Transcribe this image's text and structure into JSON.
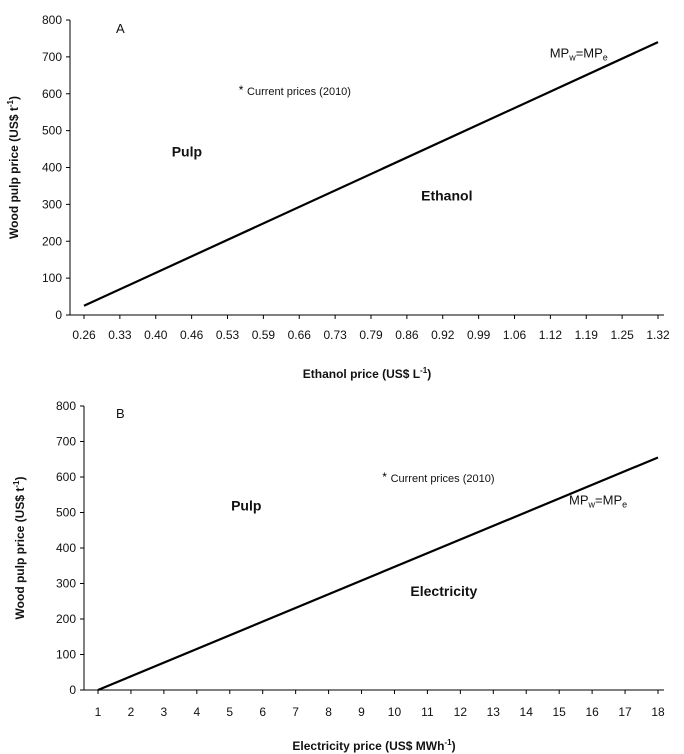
{
  "chart_data": [
    {
      "type": "line",
      "panel_label": "A",
      "xlabel_base": "Ethanol price (US$ L",
      "xlabel_sup": "-1",
      "xlabel_end": ")",
      "ylabel_base": "Wood pulp price (US$ t",
      "ylabel_sup": "-1",
      "ylabel_end": ")",
      "x_ticks": [
        "0.26",
        "0.33",
        "0.40",
        "0.46",
        "0.53",
        "0.59",
        "0.66",
        "0.73",
        "0.79",
        "0.86",
        "0.92",
        "0.99",
        "1.06",
        "1.12",
        "1.19",
        "1.25",
        "1.32"
      ],
      "y_ticks": [
        0,
        100,
        200,
        300,
        400,
        500,
        600,
        700,
        800
      ],
      "ylim": [
        0,
        800
      ],
      "xlim": [
        0.26,
        1.32
      ],
      "line": {
        "x": [
          0.26,
          1.32
        ],
        "y": [
          25,
          740
        ]
      },
      "equation": {
        "pre": "MP",
        "sub1": "w",
        "mid": "=MP",
        "sub2": "e",
        "x": 1.12,
        "y": 698
      },
      "current_point": {
        "x": 0.55,
        "y": 610,
        "label": "Current prices (2010)"
      },
      "regions": [
        {
          "label": "Pulp",
          "x": 0.45,
          "y": 430
        },
        {
          "label": "Ethanol",
          "x": 0.93,
          "y": 310
        }
      ]
    },
    {
      "type": "line",
      "panel_label": "B",
      "xlabel_base": "Electricity price (US$ MWh",
      "xlabel_sup": "-1",
      "xlabel_end": ")",
      "ylabel_base": "Wood pulp price (US$ t",
      "ylabel_sup": "-1",
      "ylabel_end": ")",
      "x_ticks": [
        "1",
        "2",
        "3",
        "4",
        "5",
        "6",
        "7",
        "8",
        "9",
        "10",
        "11",
        "12",
        "13",
        "14",
        "15",
        "16",
        "17",
        "18"
      ],
      "y_ticks": [
        0,
        100,
        200,
        300,
        400,
        500,
        600,
        700,
        800
      ],
      "ylim": [
        0,
        800
      ],
      "xlim": [
        1,
        18
      ],
      "line": {
        "x": [
          1,
          18
        ],
        "y": [
          0,
          655
        ]
      },
      "equation": {
        "pre": "MP",
        "sub1": "w",
        "mid": "=MP",
        "sub2": "e",
        "x": 15.3,
        "y": 522
      },
      "current_point": {
        "x": 9.7,
        "y": 600,
        "label": "Current prices (2010)"
      },
      "regions": [
        {
          "label": "Pulp",
          "x": 5.5,
          "y": 505
        },
        {
          "label": "Electricity",
          "x": 11.5,
          "y": 265
        }
      ]
    }
  ]
}
